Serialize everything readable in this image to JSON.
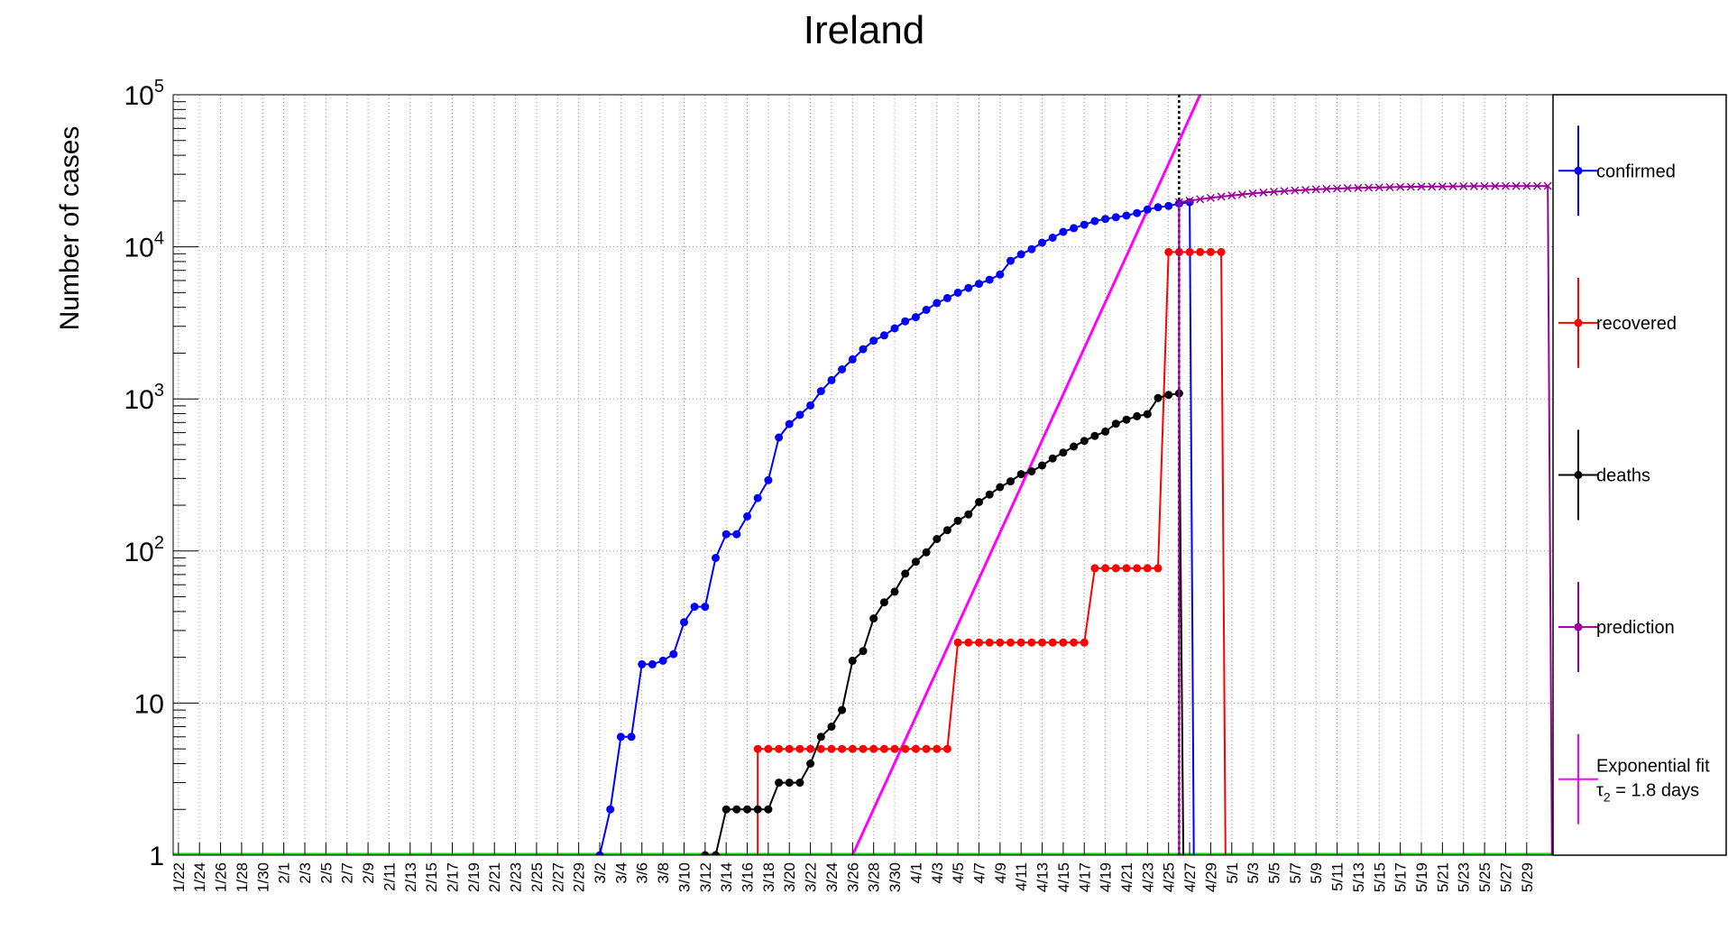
{
  "chart_data": {
    "type": "line",
    "title": "Ireland",
    "ylabel": "Number of cases",
    "xlabel": "",
    "y_scale": "log",
    "ylim": [
      1,
      100000
    ],
    "y_ticks": [
      {
        "value": 1,
        "label": "1"
      },
      {
        "value": 10,
        "label": "10"
      },
      {
        "value": 100,
        "label": "10",
        "exp": "2"
      },
      {
        "value": 1000,
        "label": "10",
        "exp": "3"
      },
      {
        "value": 10000,
        "label": "10",
        "exp": "4"
      },
      {
        "value": 100000,
        "label": "10",
        "exp": "5"
      }
    ],
    "grid": true,
    "legend_position": "right",
    "x_labels": [
      "1/22",
      "1/24",
      "1/26",
      "1/28",
      "1/30",
      "2/1",
      "2/3",
      "2/5",
      "2/7",
      "2/9",
      "2/11",
      "2/13",
      "2/15",
      "2/17",
      "2/19",
      "2/21",
      "2/23",
      "2/25",
      "2/27",
      "2/29",
      "3/2",
      "3/4",
      "3/6",
      "3/8",
      "3/10",
      "3/12",
      "3/14",
      "3/16",
      "3/18",
      "3/20",
      "3/22",
      "3/24",
      "3/26",
      "3/28",
      "3/30",
      "4/1",
      "4/3",
      "4/5",
      "4/7",
      "4/9",
      "4/11",
      "4/13",
      "4/15",
      "4/17",
      "4/19",
      "4/21",
      "4/23",
      "4/25",
      "4/27",
      "4/29",
      "5/1",
      "5/3",
      "5/5",
      "5/7",
      "5/9",
      "5/11",
      "5/13",
      "5/15",
      "5/17",
      "5/19",
      "5/21",
      "5/23",
      "5/25",
      "5/27",
      "5/29"
    ],
    "day_range": [
      "2020-01-22",
      "2020-05-31"
    ],
    "vertical_marker_date": "2020-04-26",
    "series": [
      {
        "name": "confirmed",
        "color": "#0000ff",
        "start_date": "2020-03-02",
        "values": [
          1,
          2,
          6,
          6,
          18,
          18,
          19,
          21,
          34,
          43,
          43,
          90,
          129,
          129,
          169,
          223,
          292,
          557,
          683,
          785,
          906,
          1125,
          1329,
          1564,
          1819,
          2121,
          2415,
          2615,
          2910,
          3235,
          3447,
          3849,
          4273,
          4604,
          4994,
          5364,
          5709,
          6074,
          6574,
          8089,
          8928,
          9655,
          10647,
          11479,
          12547,
          13271,
          13980,
          14758,
          15251,
          15652,
          16040,
          16671,
          17607,
          18184,
          18561,
          19262,
          19648
        ]
      },
      {
        "name": "recovered",
        "color": "#ff0000",
        "start_date": "2020-03-17",
        "values": [
          5,
          5,
          5,
          5,
          5,
          5,
          5,
          5,
          5,
          5,
          5,
          5,
          5,
          5,
          5,
          5,
          5,
          5,
          5,
          25,
          25,
          25,
          25,
          25,
          25,
          25,
          25,
          25,
          25,
          25,
          25,
          25,
          77,
          77,
          77,
          77,
          77,
          77,
          77,
          9233,
          9233,
          9233,
          9233,
          9233,
          9233
        ]
      },
      {
        "name": "deaths",
        "color": "#000000",
        "start_date": "2020-03-12",
        "values": [
          1,
          1,
          2,
          2,
          2,
          2,
          2,
          3,
          3,
          3,
          4,
          6,
          7,
          9,
          19,
          22,
          36,
          46,
          54,
          71,
          85,
          98,
          120,
          137,
          158,
          174,
          210,
          235,
          263,
          287,
          320,
          334,
          365,
          406,
          444,
          486,
          530,
          571,
          610,
          687,
          730,
          769,
          794,
          1014,
          1063,
          1087
        ]
      },
      {
        "name": "prediction",
        "color": "#990099",
        "start_date": "2020-04-26",
        "values": [
          19648,
          20100,
          20550,
          20980,
          21380,
          21760,
          22110,
          22440,
          22740,
          23010,
          23260,
          23480,
          23680,
          23860,
          24020,
          24160,
          24290,
          24400,
          24500,
          24590,
          24670,
          24740,
          24800,
          24850,
          24900,
          24940,
          24975,
          25005,
          25030,
          25050,
          25070,
          25085,
          25100,
          25110,
          25120,
          25130
        ]
      }
    ],
    "fit": {
      "name": "Exponential fit",
      "tau_label": "τ",
      "tau_sub": "2",
      "tau_text": " = 1.8 days",
      "color": "#ff00ff",
      "start_date": "2020-03-26",
      "end_date": "2020-04-28",
      "start_value": 1,
      "end_value": 100000
    }
  }
}
